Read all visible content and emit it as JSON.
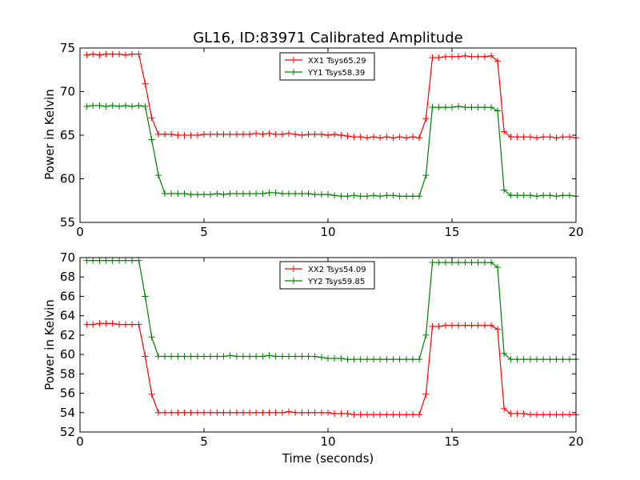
{
  "figure": {
    "title": "GL16, ID:83971 Calibrated Amplitude",
    "xlabel": "Time (seconds)",
    "colors": {
      "xx": "#ff0000",
      "yy": "#008000"
    }
  },
  "chart_data": [
    {
      "type": "line",
      "title": "GL16, ID:83971 Calibrated Amplitude",
      "xlabel": "",
      "ylabel": "Power in Kelvin",
      "xlim": [
        0,
        20
      ],
      "ylim": [
        55,
        75
      ],
      "xticks": [
        "0",
        "5",
        "10",
        "15",
        "20"
      ],
      "yticks": [
        "55",
        "60",
        "65",
        "70",
        "75"
      ],
      "legend_placement": "top-center",
      "grid": false,
      "x": [
        0.27,
        0.52,
        0.79,
        1.05,
        1.31,
        1.58,
        1.84,
        2.1,
        2.37,
        2.63,
        2.89,
        3.16,
        3.42,
        3.68,
        3.95,
        4.21,
        4.47,
        4.74,
        5.0,
        5.26,
        5.53,
        5.79,
        6.05,
        6.32,
        6.58,
        6.84,
        7.1,
        7.37,
        7.63,
        7.89,
        8.16,
        8.42,
        8.68,
        8.95,
        9.21,
        9.47,
        9.74,
        10.0,
        10.26,
        10.53,
        10.79,
        11.05,
        11.31,
        11.58,
        11.84,
        12.1,
        12.37,
        12.63,
        12.89,
        13.16,
        13.42,
        13.68,
        13.95,
        14.21,
        14.47,
        14.74,
        15.0,
        15.26,
        15.53,
        15.79,
        16.05,
        16.32,
        16.58,
        16.84,
        17.1,
        17.37,
        17.63,
        17.89,
        18.16,
        18.42,
        18.68,
        18.95,
        19.21,
        19.47,
        19.74,
        20.0
      ],
      "series": [
        {
          "name": "XX1 Tsys65.29",
          "color": "#ff0000",
          "values": [
            74.2,
            74.3,
            74.2,
            74.3,
            74.3,
            74.3,
            74.2,
            74.3,
            74.3,
            70.9,
            67.0,
            65.1,
            65.1,
            65.1,
            65.0,
            65.0,
            65.0,
            65.0,
            65.1,
            65.1,
            65.1,
            65.1,
            65.1,
            65.1,
            65.1,
            65.1,
            65.2,
            65.1,
            65.2,
            65.1,
            65.1,
            65.2,
            65.1,
            65.0,
            65.1,
            65.1,
            65.1,
            65.0,
            65.1,
            65.0,
            64.9,
            64.8,
            64.8,
            64.7,
            64.8,
            64.7,
            64.8,
            64.7,
            64.8,
            64.7,
            64.8,
            64.7,
            66.9,
            73.9,
            73.9,
            74.0,
            74.0,
            74.0,
            74.1,
            74.0,
            74.0,
            74.0,
            74.1,
            73.5,
            65.4,
            64.8,
            64.8,
            64.8,
            64.8,
            64.7,
            64.8,
            64.8,
            64.7,
            64.8,
            64.8,
            64.7
          ]
        },
        {
          "name": "YY1 Tsys58.39",
          "color": "#008000",
          "values": [
            68.3,
            68.4,
            68.4,
            68.3,
            68.4,
            68.3,
            68.4,
            68.3,
            68.4,
            68.3,
            64.5,
            60.4,
            58.3,
            58.3,
            58.3,
            58.3,
            58.2,
            58.2,
            58.2,
            58.2,
            58.3,
            58.2,
            58.3,
            58.3,
            58.3,
            58.3,
            58.3,
            58.3,
            58.4,
            58.4,
            58.3,
            58.3,
            58.3,
            58.3,
            58.3,
            58.2,
            58.2,
            58.2,
            58.1,
            58.0,
            58.0,
            58.1,
            58.0,
            58.0,
            58.1,
            58.0,
            58.1,
            58.1,
            58.0,
            58.0,
            58.0,
            58.0,
            60.4,
            68.2,
            68.2,
            68.2,
            68.2,
            68.3,
            68.2,
            68.2,
            68.2,
            68.2,
            68.2,
            67.8,
            58.7,
            58.1,
            58.1,
            58.1,
            58.1,
            58.0,
            58.1,
            58.1,
            58.0,
            58.1,
            58.1,
            58.0
          ]
        }
      ]
    },
    {
      "type": "line",
      "title": "",
      "xlabel": "Time (seconds)",
      "ylabel": "Power in Kelvin",
      "xlim": [
        0,
        20
      ],
      "ylim": [
        52,
        70
      ],
      "xticks": [
        "0",
        "5",
        "10",
        "15",
        "20"
      ],
      "yticks": [
        "52",
        "54",
        "56",
        "58",
        "60",
        "62",
        "64",
        "66",
        "68",
        "70"
      ],
      "legend_placement": "top-center",
      "grid": false,
      "x": [
        0.27,
        0.52,
        0.79,
        1.05,
        1.31,
        1.58,
        1.84,
        2.1,
        2.37,
        2.63,
        2.89,
        3.16,
        3.42,
        3.68,
        3.95,
        4.21,
        4.47,
        4.74,
        5.0,
        5.26,
        5.53,
        5.79,
        6.05,
        6.32,
        6.58,
        6.84,
        7.1,
        7.37,
        7.63,
        7.89,
        8.16,
        8.42,
        8.68,
        8.95,
        9.21,
        9.47,
        9.74,
        10.0,
        10.26,
        10.53,
        10.79,
        11.05,
        11.31,
        11.58,
        11.84,
        12.1,
        12.37,
        12.63,
        12.89,
        13.16,
        13.42,
        13.68,
        13.95,
        14.21,
        14.47,
        14.74,
        15.0,
        15.26,
        15.53,
        15.79,
        16.05,
        16.32,
        16.58,
        16.84,
        17.1,
        17.37,
        17.63,
        17.89,
        18.16,
        18.42,
        18.68,
        18.95,
        19.21,
        19.47,
        19.74,
        20.0
      ],
      "series": [
        {
          "name": "XX2 Tsys54.09",
          "color": "#ff0000",
          "values": [
            63.1,
            63.1,
            63.2,
            63.2,
            63.2,
            63.1,
            63.1,
            63.1,
            63.1,
            59.8,
            55.9,
            54.0,
            54.0,
            54.0,
            54.0,
            54.0,
            54.0,
            54.0,
            54.0,
            54.0,
            54.0,
            54.0,
            54.0,
            54.0,
            54.0,
            54.0,
            54.0,
            54.0,
            54.0,
            54.0,
            54.0,
            54.1,
            54.0,
            54.0,
            54.0,
            54.0,
            54.0,
            54.0,
            53.9,
            53.9,
            53.9,
            53.8,
            53.8,
            53.8,
            53.8,
            53.8,
            53.8,
            53.8,
            53.8,
            53.8,
            53.8,
            53.8,
            55.9,
            62.9,
            62.9,
            63.0,
            63.0,
            63.0,
            63.0,
            63.0,
            63.0,
            63.0,
            63.0,
            62.6,
            54.4,
            53.9,
            53.9,
            53.9,
            53.8,
            53.8,
            53.8,
            53.8,
            53.8,
            53.8,
            53.8,
            53.8
          ]
        },
        {
          "name": "YY2 Tsys59.85",
          "color": "#008000",
          "values": [
            69.7,
            69.7,
            69.7,
            69.7,
            69.7,
            69.7,
            69.7,
            69.7,
            69.7,
            66.0,
            61.8,
            59.8,
            59.8,
            59.8,
            59.8,
            59.8,
            59.8,
            59.8,
            59.8,
            59.8,
            59.8,
            59.8,
            59.9,
            59.8,
            59.8,
            59.8,
            59.8,
            59.8,
            59.9,
            59.8,
            59.8,
            59.8,
            59.8,
            59.8,
            59.8,
            59.8,
            59.7,
            59.6,
            59.6,
            59.6,
            59.5,
            59.5,
            59.5,
            59.5,
            59.5,
            59.5,
            59.5,
            59.5,
            59.5,
            59.5,
            59.5,
            59.5,
            62.0,
            69.5,
            69.5,
            69.5,
            69.5,
            69.5,
            69.5,
            69.5,
            69.5,
            69.5,
            69.5,
            69.0,
            60.1,
            59.5,
            59.5,
            59.5,
            59.5,
            59.5,
            59.5,
            59.5,
            59.5,
            59.5,
            59.5,
            59.5
          ]
        }
      ]
    }
  ]
}
